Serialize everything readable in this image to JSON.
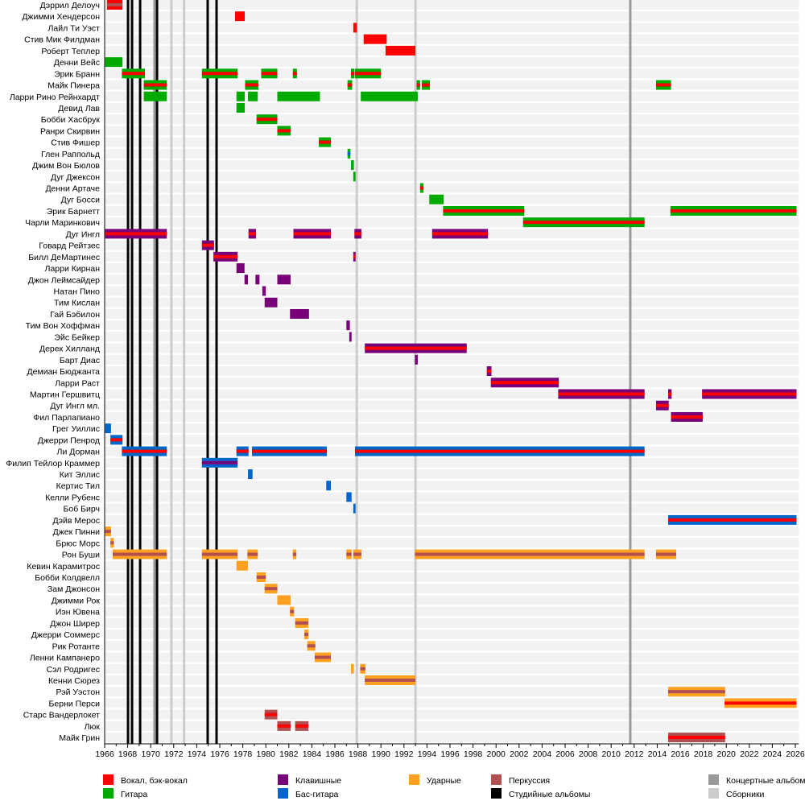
{
  "chart_data": {
    "type": "timeline",
    "title": "",
    "xlim": [
      1966,
      2026.3
    ],
    "x_ticks": [
      1966,
      1968,
      1970,
      1972,
      1974,
      1976,
      1978,
      1980,
      1982,
      1984,
      1986,
      1988,
      1990,
      1992,
      1994,
      1996,
      1998,
      2000,
      2002,
      2004,
      2006,
      2008,
      2010,
      2012,
      2014,
      2016,
      2018,
      2020,
      2022,
      2024,
      2026
    ],
    "colors": {
      "vocal": "#ff0000",
      "guitar": "#00aa00",
      "keys": "#780078",
      "bass": "#0066cc",
      "drums": "#ffa020",
      "perc": "#b05050",
      "studio": "#000000",
      "live": "#999999",
      "comp": "#cccccc"
    },
    "legend": [
      {
        "key": "vocal",
        "label": "Вокал, бэк-вокал"
      },
      {
        "key": "guitar",
        "label": "Гитара"
      },
      {
        "key": "keys",
        "label": "Клавишные"
      },
      {
        "key": "bass",
        "label": "Бас-гитара"
      },
      {
        "key": "drums",
        "label": "Ударные"
      },
      {
        "key": "perc",
        "label": "Перкуссия"
      },
      {
        "key": "studio",
        "label": "Студийные альбомы"
      },
      {
        "key": "live",
        "label": "Концертные альбомы"
      },
      {
        "key": "comp",
        "label": "Сборники"
      }
    ],
    "albums": {
      "studio": [
        1968.03,
        1968.38,
        1969.08,
        1970.55,
        1974.95,
        1975.72
      ],
      "live": [
        1970.33,
        2011.66
      ],
      "comp": [
        1971.8,
        1972.9,
        1987.9,
        1993.0
      ]
    },
    "members": [
      {
        "name": "Дэррил Делоуч",
        "bars": [
          [
            1966.2,
            1967.55,
            "vocal",
            "perc"
          ]
        ]
      },
      {
        "name": "Джимми Хендерсон",
        "bars": [
          [
            1977.33,
            1978.17,
            "vocal",
            null
          ]
        ]
      },
      {
        "name": "Лайл Ти Уэст",
        "bars": [
          [
            1987.6,
            1987.9,
            "vocal",
            null
          ]
        ]
      },
      {
        "name": "Стив Мик Филдман",
        "bars": [
          [
            1988.5,
            1990.5,
            "vocal",
            null
          ]
        ]
      },
      {
        "name": "Роберт Теплер",
        "bars": [
          [
            1990.4,
            1993.0,
            "vocal",
            null
          ]
        ]
      },
      {
        "name": "Денни Вейс",
        "bars": [
          [
            1966.05,
            1967.55,
            "guitar",
            null
          ]
        ]
      },
      {
        "name": "Эрик Бранн",
        "bars": [
          [
            1967.5,
            1969.5,
            "guitar",
            "vocal"
          ],
          [
            1974.45,
            1977.55,
            "guitar",
            "vocal"
          ],
          [
            1979.6,
            1981.0,
            "guitar",
            "vocal"
          ],
          [
            1982.35,
            1982.7,
            "guitar",
            "vocal"
          ],
          [
            1987.4,
            1987.7,
            "guitar",
            "vocal"
          ],
          [
            1987.75,
            1990.0,
            "guitar",
            "vocal"
          ]
        ]
      },
      {
        "name": "Майк Пинера",
        "bars": [
          [
            1969.4,
            1971.4,
            "guitar",
            "vocal"
          ],
          [
            1978.2,
            1979.35,
            "guitar",
            "vocal"
          ],
          [
            1987.1,
            1987.5,
            "guitar",
            "vocal"
          ],
          [
            1993.1,
            1993.4,
            "guitar",
            "vocal"
          ],
          [
            1993.55,
            1994.25,
            "guitar",
            "vocal"
          ],
          [
            2013.9,
            2015.2,
            "guitar",
            "vocal"
          ]
        ]
      },
      {
        "name": "Ларри Рино Рейнхардт",
        "bars": [
          [
            1969.4,
            1971.4,
            "guitar",
            null
          ],
          [
            1977.45,
            1978.17,
            "guitar",
            null
          ],
          [
            1978.45,
            1979.3,
            "guitar",
            null
          ],
          [
            1981.0,
            1984.7,
            "guitar",
            null
          ],
          [
            1988.25,
            1993.2,
            "guitar",
            null
          ]
        ]
      },
      {
        "name": "Девид Лав",
        "bars": [
          [
            1977.45,
            1978.17,
            "guitar",
            null
          ]
        ]
      },
      {
        "name": "Бобби Хасбрук",
        "bars": [
          [
            1979.2,
            1981.0,
            "guitar",
            "vocal"
          ]
        ]
      },
      {
        "name": "Ранри Скирвин",
        "bars": [
          [
            1981.0,
            1982.15,
            "guitar",
            "vocal"
          ]
        ]
      },
      {
        "name": "Стив Фишер",
        "bars": [
          [
            1984.6,
            1985.65,
            "guitar",
            "vocal"
          ]
        ]
      },
      {
        "name": "Глен Раппольд",
        "bars": [
          [
            1987.1,
            1987.35,
            "guitar",
            "bass"
          ]
        ]
      },
      {
        "name": "Джим Вон Бюлов",
        "bars": [
          [
            1987.4,
            1987.65,
            "guitar",
            null
          ]
        ]
      },
      {
        "name": "Дуг Джексон",
        "bars": [
          [
            1987.6,
            1987.8,
            "guitar",
            null
          ]
        ]
      },
      {
        "name": "Денни Артаче",
        "bars": [
          [
            1993.4,
            1993.7,
            "guitar",
            "vocal"
          ]
        ]
      },
      {
        "name": "Дуг Босси",
        "bars": [
          [
            1994.2,
            1995.45,
            "guitar",
            null
          ]
        ]
      },
      {
        "name": "Эрик Барнетт",
        "bars": [
          [
            1995.4,
            2002.45,
            "guitar",
            "vocal"
          ],
          [
            2015.15,
            2026.1,
            "guitar",
            "vocal"
          ]
        ]
      },
      {
        "name": "Чарли Маринкович",
        "bars": [
          [
            2002.35,
            2012.9,
            "guitar",
            "vocal"
          ]
        ]
      },
      {
        "name": "Дуг Ингл",
        "bars": [
          [
            1966.05,
            1971.4,
            "keys",
            "vocal"
          ],
          [
            1978.5,
            1979.15,
            "keys",
            "vocal"
          ],
          [
            1982.4,
            1985.65,
            "keys",
            "vocal"
          ],
          [
            1987.7,
            1988.3,
            "keys",
            "vocal"
          ],
          [
            1994.45,
            1999.3,
            "keys",
            "vocal"
          ]
        ]
      },
      {
        "name": "Говард Рейтзес",
        "bars": [
          [
            1974.45,
            1975.5,
            "keys",
            "vocal"
          ]
        ]
      },
      {
        "name": "Билл ДеМартинес",
        "bars": [
          [
            1975.45,
            1977.55,
            "keys",
            "vocal"
          ],
          [
            1987.6,
            1987.8,
            "keys",
            "vocal"
          ]
        ]
      },
      {
        "name": "Ларри Кирнан",
        "bars": [
          [
            1977.45,
            1978.15,
            "keys",
            null
          ]
        ]
      },
      {
        "name": "Джон Леймсайдер",
        "bars": [
          [
            1978.15,
            1978.45,
            "keys",
            null
          ],
          [
            1979.1,
            1979.45,
            "keys",
            null
          ],
          [
            1981.0,
            1982.15,
            "keys",
            null
          ]
        ]
      },
      {
        "name": "Натан Пино",
        "bars": [
          [
            1979.7,
            1980.0,
            "keys",
            null
          ]
        ]
      },
      {
        "name": "Тим Кислан",
        "bars": [
          [
            1979.9,
            1981.0,
            "keys",
            null
          ]
        ]
      },
      {
        "name": "Гай Бэбилон",
        "bars": [
          [
            1982.1,
            1983.75,
            "keys",
            null
          ]
        ]
      },
      {
        "name": "Тим Вон Хоффман",
        "bars": [
          [
            1987.0,
            1987.3,
            "keys",
            null
          ]
        ]
      },
      {
        "name": "Эйс Бейкер",
        "bars": [
          [
            1987.25,
            1987.45,
            "keys",
            null
          ]
        ]
      },
      {
        "name": "Дерек Хилланд",
        "bars": [
          [
            1988.6,
            1997.45,
            "keys",
            "vocal"
          ]
        ]
      },
      {
        "name": "Барт Диас",
        "bars": [
          [
            1992.95,
            1993.2,
            "keys",
            null
          ]
        ]
      },
      {
        "name": "Демиан Бюджанта",
        "bars": [
          [
            1999.2,
            1999.6,
            "keys",
            "vocal"
          ]
        ]
      },
      {
        "name": "Ларри Раст",
        "bars": [
          [
            1999.55,
            2005.45,
            "keys",
            "vocal"
          ]
        ]
      },
      {
        "name": "Мартин Гершвитц",
        "bars": [
          [
            2005.4,
            2012.9,
            "keys",
            "vocal"
          ],
          [
            2014.95,
            2015.25,
            "keys",
            "vocal"
          ],
          [
            2017.9,
            2026.1,
            "keys",
            "vocal"
          ]
        ]
      },
      {
        "name": "Дуг Ингл мл.",
        "bars": [
          [
            2013.9,
            2015.0,
            "keys",
            "vocal"
          ]
        ]
      },
      {
        "name": "Фил Парлапиано",
        "bars": [
          [
            2015.2,
            2017.95,
            "keys",
            "vocal"
          ]
        ]
      },
      {
        "name": "Грег Уиллис",
        "bars": [
          [
            1966.05,
            1966.55,
            "bass",
            null
          ]
        ]
      },
      {
        "name": "Джерри Пенрод",
        "bars": [
          [
            1966.5,
            1967.55,
            "bass",
            "vocal"
          ]
        ]
      },
      {
        "name": "Ли Дорман",
        "bars": [
          [
            1967.5,
            1971.4,
            "bass",
            "vocal"
          ],
          [
            1977.45,
            1978.5,
            "bass",
            "vocal"
          ],
          [
            1978.8,
            1985.3,
            "bass",
            "vocal"
          ],
          [
            1987.75,
            2012.9,
            "bass",
            "vocal"
          ]
        ]
      },
      {
        "name": "Филип Тейлор Краммер",
        "bars": [
          [
            1974.45,
            1977.55,
            "bass",
            "keys"
          ]
        ]
      },
      {
        "name": "Кит Эллис",
        "bars": [
          [
            1978.45,
            1978.85,
            "bass",
            null
          ]
        ]
      },
      {
        "name": "Кертис Тил",
        "bars": [
          [
            1985.25,
            1985.65,
            "bass",
            null
          ]
        ]
      },
      {
        "name": "Келли Рубенс",
        "bars": [
          [
            1987.0,
            1987.45,
            "bass",
            null
          ]
        ]
      },
      {
        "name": "Боб Бирч",
        "bars": [
          [
            1987.6,
            1987.8,
            "bass",
            null
          ]
        ]
      },
      {
        "name": "Дэйв Мерос",
        "bars": [
          [
            2014.95,
            2026.1,
            "bass",
            "vocal"
          ]
        ]
      },
      {
        "name": "Джек Пинни",
        "bars": [
          [
            1966.05,
            1966.55,
            "drums",
            "perc"
          ]
        ]
      },
      {
        "name": "Брюс Морс",
        "bars": [
          [
            1966.5,
            1966.8,
            "drums",
            "perc"
          ]
        ]
      },
      {
        "name": "Рон Буши",
        "bars": [
          [
            1966.7,
            1971.4,
            "drums",
            "perc"
          ],
          [
            1974.45,
            1977.55,
            "drums",
            "perc"
          ],
          [
            1978.4,
            1979.3,
            "drums",
            "perc"
          ],
          [
            1982.35,
            1982.65,
            "drums",
            "perc"
          ],
          [
            1987.0,
            1987.45,
            "drums",
            "perc"
          ],
          [
            1987.6,
            1988.3,
            "drums",
            "perc"
          ],
          [
            1992.95,
            2012.9,
            "drums",
            "perc"
          ],
          [
            2013.9,
            2015.65,
            "drums",
            "perc"
          ]
        ]
      },
      {
        "name": "Кевин Карамитрос",
        "bars": [
          [
            1977.45,
            1978.45,
            "drums",
            null
          ]
        ]
      },
      {
        "name": "Бобби Колдвелл",
        "bars": [
          [
            1979.2,
            1980.0,
            "drums",
            "perc"
          ]
        ]
      },
      {
        "name": "Зам Джонсон",
        "bars": [
          [
            1979.9,
            1981.0,
            "drums",
            "perc"
          ]
        ]
      },
      {
        "name": "Джимми Рок",
        "bars": [
          [
            1981.0,
            1982.15,
            "drums",
            null
          ]
        ]
      },
      {
        "name": "Иэн Ювена",
        "bars": [
          [
            1982.1,
            1982.45,
            "drums",
            "perc"
          ]
        ]
      },
      {
        "name": "Джон Ширер",
        "bars": [
          [
            1982.55,
            1983.7,
            "drums",
            "perc"
          ]
        ]
      },
      {
        "name": "Джерри Соммерс",
        "bars": [
          [
            1983.35,
            1983.7,
            "drums",
            "perc"
          ]
        ]
      },
      {
        "name": "Рик Ротанте",
        "bars": [
          [
            1983.6,
            1984.3,
            "drums",
            "perc"
          ]
        ]
      },
      {
        "name": "Ленни Кампанеро",
        "bars": [
          [
            1984.25,
            1985.65,
            "drums",
            "perc"
          ]
        ]
      },
      {
        "name": "Сэл Родригес",
        "bars": [
          [
            1987.4,
            1987.65,
            "drums",
            null
          ],
          [
            1988.2,
            1988.65,
            "drums",
            "perc"
          ]
        ]
      },
      {
        "name": "Кенни Сюрез",
        "bars": [
          [
            1988.6,
            1993.0,
            "drums",
            "perc"
          ]
        ]
      },
      {
        "name": "Рэй Уэстон",
        "bars": [
          [
            2014.95,
            2019.9,
            "drums",
            "perc"
          ]
        ]
      },
      {
        "name": "Берни Перси",
        "bars": [
          [
            2019.85,
            2026.1,
            "drums",
            "vocal"
          ]
        ]
      },
      {
        "name": "Старс Вандерлокет",
        "bars": [
          [
            1979.9,
            1981.0,
            "perc",
            "vocal"
          ]
        ]
      },
      {
        "name": "Люк",
        "bars": [
          [
            1981.0,
            1982.15,
            "perc",
            "vocal"
          ],
          [
            1982.55,
            1983.7,
            "perc",
            "vocal"
          ]
        ]
      },
      {
        "name": "Майк Грин",
        "bars": [
          [
            2014.95,
            2019.9,
            "perc",
            "vocal"
          ]
        ]
      }
    ]
  }
}
